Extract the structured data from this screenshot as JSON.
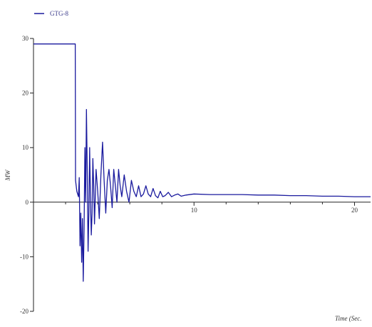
{
  "chart_data": {
    "type": "line",
    "title": "",
    "xlabel": "Time (Sec.",
    "ylabel": "MW",
    "xlim": [
      0,
      21
    ],
    "ylim": [
      -20,
      30
    ],
    "x_ticks": [
      10,
      20
    ],
    "y_ticks": [
      30,
      20,
      10,
      0,
      -10,
      -20
    ],
    "x_tick_labels": [
      "10",
      "20"
    ],
    "y_tick_labels": [
      "30",
      "20",
      "10",
      "0",
      "-10",
      "-20"
    ],
    "grid": false,
    "legend_position": "top-left",
    "series": [
      {
        "name": "GTG-8",
        "color": "#1a1a9e",
        "x": [
          0,
          2.6,
          2.62,
          2.7,
          2.8,
          2.85,
          2.9,
          2.95,
          3.0,
          3.05,
          3.1,
          3.15,
          3.2,
          3.25,
          3.3,
          3.35,
          3.4,
          3.45,
          3.5,
          3.55,
          3.6,
          3.65,
          3.7,
          3.75,
          3.8,
          3.9,
          4.0,
          4.1,
          4.2,
          4.3,
          4.4,
          4.5,
          4.6,
          4.7,
          4.8,
          4.9,
          5.0,
          5.1,
          5.2,
          5.3,
          5.4,
          5.5,
          5.65,
          5.8,
          5.95,
          6.1,
          6.25,
          6.4,
          6.55,
          6.7,
          6.85,
          7.0,
          7.15,
          7.3,
          7.45,
          7.6,
          7.75,
          7.9,
          8.05,
          8.2,
          8.4,
          8.6,
          8.8,
          9.0,
          9.2,
          9.5,
          10.0,
          11.0,
          12.0,
          13.0,
          14.0,
          15.0,
          16.0,
          17.0,
          18.0,
          19.0,
          20.0,
          21.0
        ],
        "y": [
          29,
          29,
          4,
          2,
          1,
          4.5,
          -8,
          -2,
          -11,
          -3,
          -14.5,
          -5,
          10,
          0,
          17,
          5,
          -9,
          -2,
          10,
          0,
          -6,
          -2,
          8,
          3,
          -4,
          6,
          2,
          -3,
          5,
          11,
          4,
          -2,
          4,
          6,
          3,
          -1,
          6,
          3,
          0,
          6,
          3,
          1,
          5,
          2,
          0,
          4,
          2,
          1,
          3,
          1,
          1.5,
          3,
          1.5,
          1,
          2.5,
          1.2,
          0.8,
          2,
          1,
          1.2,
          1.8,
          1,
          1.3,
          1.5,
          1.1,
          1.3,
          1.5,
          1.4,
          1.4,
          1.4,
          1.3,
          1.3,
          1.2,
          1.2,
          1.1,
          1.1,
          1.0,
          1.0
        ]
      }
    ]
  }
}
